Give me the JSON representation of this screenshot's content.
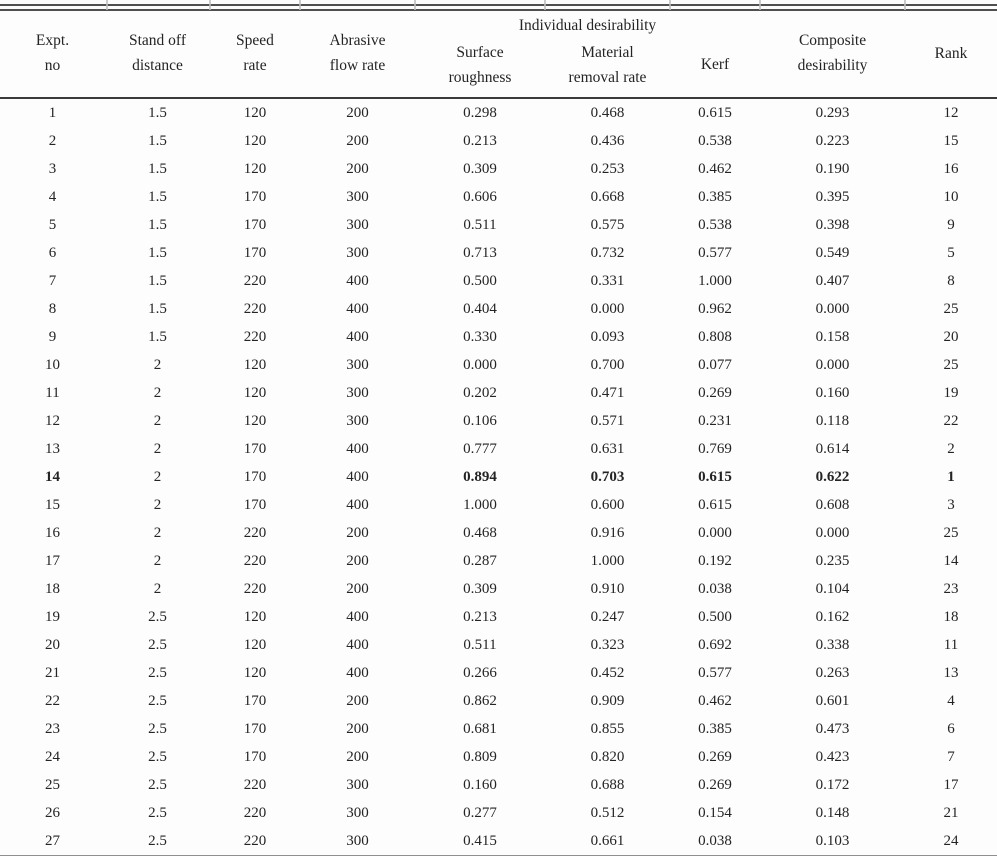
{
  "header": {
    "group_label": "Individual desirability",
    "cols": {
      "expt": {
        "l1": "Expt.",
        "l2": "no"
      },
      "standoff": {
        "l1": "Stand off",
        "l2": "distance"
      },
      "speed": {
        "l1": "Speed",
        "l2": "rate"
      },
      "abrasive": {
        "l1": "Abrasive",
        "l2": "flow rate"
      },
      "surface": {
        "l1": "Surface",
        "l2": "roughness"
      },
      "material": {
        "l1": "Material",
        "l2": "removal rate"
      },
      "kerf": {
        "l1": "Kerf"
      },
      "composite": {
        "l1": "Composite",
        "l2": "desirability"
      },
      "rank": {
        "l1": "Rank"
      }
    }
  },
  "table": {
    "column_keys": [
      "expt_no",
      "stand_off_distance",
      "speed_rate",
      "abrasive_flow_rate",
      "surface_roughness",
      "material_removal_rate",
      "kerf",
      "composite_desirability",
      "rank"
    ],
    "bold_row_index": 13,
    "bold_cols": [
      0,
      4,
      5,
      6,
      7,
      8
    ],
    "rows": [
      [
        "1",
        "1.5",
        "120",
        "200",
        "0.298",
        "0.468",
        "0.615",
        "0.293",
        "12"
      ],
      [
        "2",
        "1.5",
        "120",
        "200",
        "0.213",
        "0.436",
        "0.538",
        "0.223",
        "15"
      ],
      [
        "3",
        "1.5",
        "120",
        "200",
        "0.309",
        "0.253",
        "0.462",
        "0.190",
        "16"
      ],
      [
        "4",
        "1.5",
        "170",
        "300",
        "0.606",
        "0.668",
        "0.385",
        "0.395",
        "10"
      ],
      [
        "5",
        "1.5",
        "170",
        "300",
        "0.511",
        "0.575",
        "0.538",
        "0.398",
        "9"
      ],
      [
        "6",
        "1.5",
        "170",
        "300",
        "0.713",
        "0.732",
        "0.577",
        "0.549",
        "5"
      ],
      [
        "7",
        "1.5",
        "220",
        "400",
        "0.500",
        "0.331",
        "1.000",
        "0.407",
        "8"
      ],
      [
        "8",
        "1.5",
        "220",
        "400",
        "0.404",
        "0.000",
        "0.962",
        "0.000",
        "25"
      ],
      [
        "9",
        "1.5",
        "220",
        "400",
        "0.330",
        "0.093",
        "0.808",
        "0.158",
        "20"
      ],
      [
        "10",
        "2",
        "120",
        "300",
        "0.000",
        "0.700",
        "0.077",
        "0.000",
        "25"
      ],
      [
        "11",
        "2",
        "120",
        "300",
        "0.202",
        "0.471",
        "0.269",
        "0.160",
        "19"
      ],
      [
        "12",
        "2",
        "120",
        "300",
        "0.106",
        "0.571",
        "0.231",
        "0.118",
        "22"
      ],
      [
        "13",
        "2",
        "170",
        "400",
        "0.777",
        "0.631",
        "0.769",
        "0.614",
        "2"
      ],
      [
        "14",
        "2",
        "170",
        "400",
        "0.894",
        "0.703",
        "0.615",
        "0.622",
        "1"
      ],
      [
        "15",
        "2",
        "170",
        "400",
        "1.000",
        "0.600",
        "0.615",
        "0.608",
        "3"
      ],
      [
        "16",
        "2",
        "220",
        "200",
        "0.468",
        "0.916",
        "0.000",
        "0.000",
        "25"
      ],
      [
        "17",
        "2",
        "220",
        "200",
        "0.287",
        "1.000",
        "0.192",
        "0.235",
        "14"
      ],
      [
        "18",
        "2",
        "220",
        "200",
        "0.309",
        "0.910",
        "0.038",
        "0.104",
        "23"
      ],
      [
        "19",
        "2.5",
        "120",
        "400",
        "0.213",
        "0.247",
        "0.500",
        "0.162",
        "18"
      ],
      [
        "20",
        "2.5",
        "120",
        "400",
        "0.511",
        "0.323",
        "0.692",
        "0.338",
        "11"
      ],
      [
        "21",
        "2.5",
        "120",
        "400",
        "0.266",
        "0.452",
        "0.577",
        "0.263",
        "13"
      ],
      [
        "22",
        "2.5",
        "170",
        "200",
        "0.862",
        "0.909",
        "0.462",
        "0.601",
        "4"
      ],
      [
        "23",
        "2.5",
        "170",
        "200",
        "0.681",
        "0.855",
        "0.385",
        "0.473",
        "6"
      ],
      [
        "24",
        "2.5",
        "170",
        "200",
        "0.809",
        "0.820",
        "0.269",
        "0.423",
        "7"
      ],
      [
        "25",
        "2.5",
        "220",
        "300",
        "0.160",
        "0.688",
        "0.269",
        "0.172",
        "17"
      ],
      [
        "26",
        "2.5",
        "220",
        "300",
        "0.277",
        "0.512",
        "0.154",
        "0.148",
        "21"
      ],
      [
        "27",
        "2.5",
        "220",
        "300",
        "0.415",
        "0.661",
        "0.038",
        "0.103",
        "24"
      ]
    ]
  }
}
